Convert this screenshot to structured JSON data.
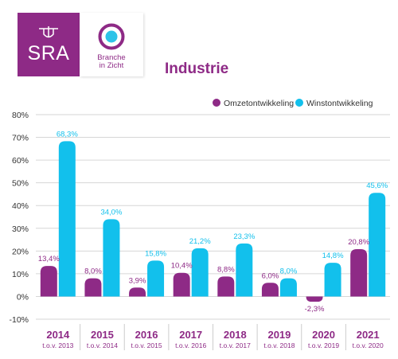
{
  "logos": {
    "sra": {
      "text": "SRA",
      "bg_color": "#8e2a86"
    },
    "branche": {
      "line1": "Branche",
      "line2": "in Zicht",
      "color": "#8e2a86",
      "ring_color": "#8e2a86",
      "dot_color": "#2ec3e8"
    }
  },
  "chart_data": {
    "type": "bar",
    "title": "Industrie",
    "categories": [
      "2014",
      "2015",
      "2016",
      "2017",
      "2018",
      "2019",
      "2020",
      "2021"
    ],
    "category_sublabels": [
      "t.o.v. 2013",
      "t.o.v. 2014",
      "t.o.v. 2015",
      "t.o.v. 2016",
      "t.o.v. 2017",
      "t.o.v. 2018",
      "t.o.v. 2019",
      "t.o.v. 2020"
    ],
    "series": [
      {
        "name": "Omzetontwikkeling",
        "color": "#8e2a86",
        "values": [
          13.4,
          8.0,
          3.9,
          10.4,
          8.8,
          6.0,
          -2.3,
          20.8
        ],
        "labels": [
          "13,4%",
          "8,0%",
          "3,9%",
          "10,4%",
          "8,8%",
          "6,0%",
          "-2,3%",
          "20,8%"
        ]
      },
      {
        "name": "Winstontwikkeling",
        "color": "#12c0ec",
        "values": [
          68.3,
          34.0,
          15.8,
          21.2,
          23.3,
          8.0,
          14.8,
          45.6
        ],
        "labels": [
          "68,3%",
          "34,0%",
          "15,8%",
          "21,2%",
          "23,3%",
          "8,0%",
          "14,8%",
          "45,6%"
        ]
      }
    ],
    "ylim": [
      -10,
      80
    ],
    "yticks": [
      80,
      70,
      60,
      50,
      40,
      30,
      20,
      10,
      0,
      -10
    ],
    "ytick_labels": [
      "80%",
      "70%",
      "60%",
      "50%",
      "40%",
      "30%",
      "20%",
      "10%",
      "0%",
      "-10%"
    ],
    "grid": true,
    "legend_position": "top-right"
  }
}
